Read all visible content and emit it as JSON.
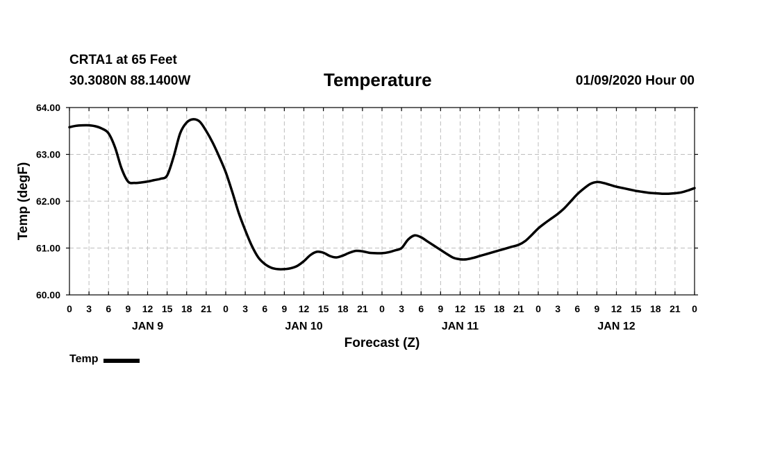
{
  "header": {
    "station": "CRTA1 at 65 Feet",
    "coords": "30.3080N 88.1400W",
    "title": "Temperature",
    "datetime": "01/09/2020 Hour 00"
  },
  "chart_data": {
    "type": "line",
    "title": "Temperature",
    "xlabel": "Forecast (Z)",
    "ylabel": "Temp (degF)",
    "ylim": [
      60.0,
      64.0
    ],
    "yticks": [
      "60.00",
      "61.00",
      "62.00",
      "63.00",
      "64.00"
    ],
    "xlim": [
      0,
      96
    ],
    "x_tick_step_hours": 3,
    "x_tick_labels": [
      "0",
      "3",
      "6",
      "9",
      "12",
      "15",
      "18",
      "21",
      "0",
      "3",
      "6",
      "9",
      "12",
      "15",
      "18",
      "21",
      "0",
      "3",
      "6",
      "9",
      "12",
      "15",
      "18",
      "21",
      "0",
      "3",
      "6",
      "9",
      "12",
      "15",
      "18",
      "21",
      "0"
    ],
    "day_labels": [
      {
        "hour": 12,
        "label": "JAN 9"
      },
      {
        "hour": 36,
        "label": "JAN 10"
      },
      {
        "hour": 60,
        "label": "JAN 11"
      },
      {
        "hour": 84,
        "label": "JAN 12"
      }
    ],
    "grid": true,
    "series": [
      {
        "name": "Temp",
        "x": [
          0,
          1,
          2,
          3,
          4,
          5,
          6,
          7,
          8,
          9,
          10,
          11,
          12,
          13,
          14,
          15,
          16,
          17,
          18,
          19,
          20,
          21,
          22,
          23,
          24,
          25,
          26,
          27,
          28,
          29,
          30,
          31,
          32,
          33,
          34,
          35,
          36,
          37,
          38,
          39,
          40,
          41,
          42,
          43,
          44,
          45,
          46,
          47,
          48,
          49,
          50,
          51,
          52,
          53,
          54,
          55,
          56,
          57,
          58,
          59,
          60,
          61,
          62,
          63,
          64,
          65,
          66,
          67,
          68,
          69,
          70,
          71,
          72,
          73,
          74,
          75,
          76,
          77,
          78,
          79,
          80,
          81,
          82,
          83,
          84,
          85,
          86,
          87,
          88,
          89,
          90,
          91,
          92,
          93,
          94,
          95,
          96
        ],
        "values": [
          63.58,
          63.61,
          63.62,
          63.62,
          63.6,
          63.55,
          63.45,
          63.15,
          62.7,
          62.42,
          62.39,
          62.4,
          62.42,
          62.45,
          62.48,
          62.55,
          62.95,
          63.45,
          63.68,
          63.75,
          63.7,
          63.5,
          63.25,
          62.95,
          62.62,
          62.2,
          61.75,
          61.38,
          61.05,
          60.8,
          60.66,
          60.58,
          60.55,
          60.55,
          60.57,
          60.62,
          60.72,
          60.85,
          60.92,
          60.9,
          60.83,
          60.8,
          60.84,
          60.9,
          60.94,
          60.93,
          60.9,
          60.89,
          60.89,
          60.91,
          60.95,
          61.0,
          61.18,
          61.27,
          61.23,
          61.14,
          61.05,
          60.96,
          60.87,
          60.79,
          60.76,
          60.76,
          60.79,
          60.83,
          60.87,
          60.91,
          60.95,
          60.99,
          61.03,
          61.07,
          61.15,
          61.28,
          61.42,
          61.53,
          61.63,
          61.73,
          61.85,
          62.0,
          62.15,
          62.27,
          62.37,
          62.41,
          62.39,
          62.35,
          62.31,
          62.28,
          62.25,
          62.22,
          62.2,
          62.18,
          62.17,
          62.16,
          62.16,
          62.17,
          62.19,
          62.23,
          62.28
        ]
      }
    ],
    "legend": {
      "label": "Temp",
      "position": "bottom-left"
    }
  }
}
